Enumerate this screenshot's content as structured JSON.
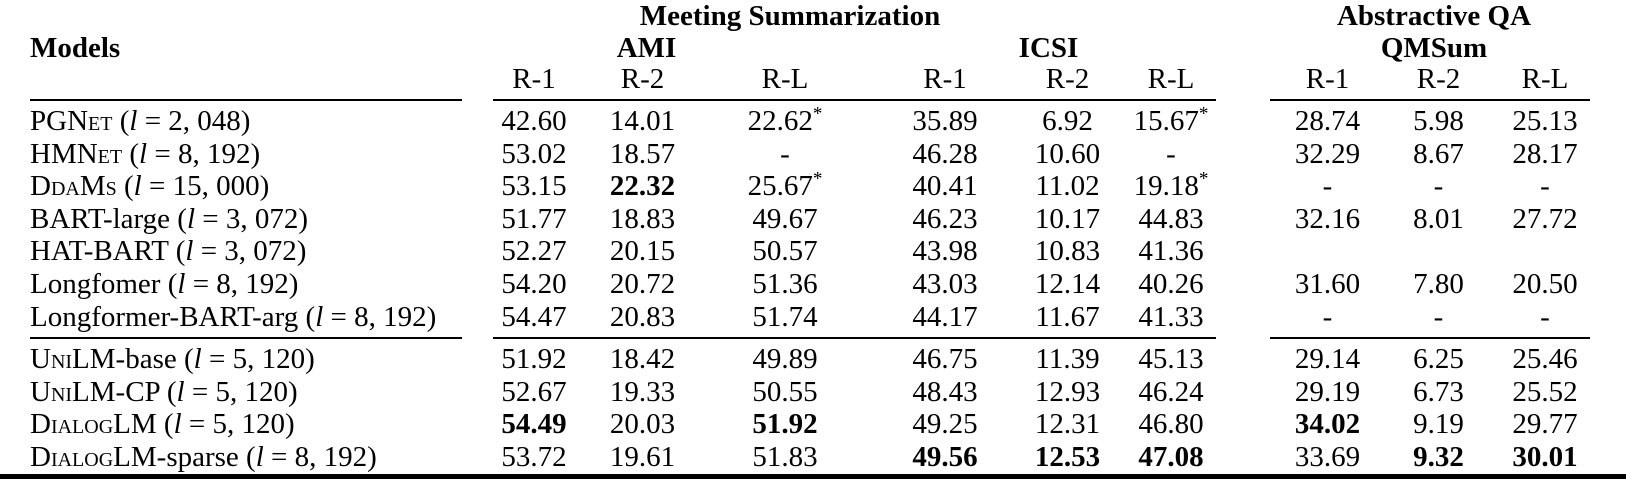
{
  "colors": {
    "text": "#000000",
    "background": "#ffffff"
  },
  "table": {
    "headers": {
      "models": "Models",
      "task_groups": [
        {
          "label": "Meeting Summarization"
        },
        {
          "label": "Abstractive QA"
        }
      ],
      "datasets": [
        {
          "label": "AMI"
        },
        {
          "label": "ICSI"
        },
        {
          "label": "QMSum"
        }
      ],
      "metrics": [
        "R-1",
        "R-2",
        "R-L"
      ]
    },
    "length_format": {
      "open": "(",
      "var": "l",
      "eq": " = ",
      "close": ")"
    },
    "groups": [
      {
        "rows": [
          {
            "name_sc": "PGNet",
            "name_rest": "",
            "length": "2, 048",
            "cells": [
              {
                "v": "42.60"
              },
              {
                "v": "14.01"
              },
              {
                "v": "22.62",
                "sup": "*"
              },
              {
                "v": "35.89"
              },
              {
                "v": "6.92"
              },
              {
                "v": "15.67",
                "sup": "*"
              },
              {
                "v": "28.74"
              },
              {
                "v": "5.98"
              },
              {
                "v": "25.13"
              }
            ]
          },
          {
            "name_sc": "HMNet",
            "name_rest": "",
            "length": "8, 192",
            "cells": [
              {
                "v": "53.02"
              },
              {
                "v": "18.57"
              },
              {
                "v": "-"
              },
              {
                "v": "46.28"
              },
              {
                "v": "10.60"
              },
              {
                "v": "-"
              },
              {
                "v": "32.29"
              },
              {
                "v": "8.67"
              },
              {
                "v": "28.17"
              }
            ]
          },
          {
            "name_sc": "DdaMs",
            "name_rest": "",
            "length": "15, 000",
            "cells": [
              {
                "v": "53.15"
              },
              {
                "v": "22.32",
                "bold": true
              },
              {
                "v": "25.67",
                "sup": "*"
              },
              {
                "v": "40.41"
              },
              {
                "v": "11.02"
              },
              {
                "v": "19.18",
                "sup": "*"
              },
              {
                "v": "-"
              },
              {
                "v": "-"
              },
              {
                "v": "-"
              }
            ]
          },
          {
            "name_sc": "",
            "name_rest": "BART-large",
            "length": "3, 072",
            "cells": [
              {
                "v": "51.77"
              },
              {
                "v": "18.83"
              },
              {
                "v": "49.67"
              },
              {
                "v": "46.23"
              },
              {
                "v": "10.17"
              },
              {
                "v": "44.83"
              },
              {
                "v": "32.16"
              },
              {
                "v": "8.01"
              },
              {
                "v": "27.72"
              }
            ]
          },
          {
            "name_sc": "",
            "name_rest": "HAT-BART",
            "length": "3, 072",
            "cells": [
              {
                "v": "52.27"
              },
              {
                "v": "20.15"
              },
              {
                "v": "50.57"
              },
              {
                "v": "43.98"
              },
              {
                "v": "10.83"
              },
              {
                "v": "41.36"
              },
              {
                "v": ""
              },
              {
                "v": ""
              },
              {
                "v": ""
              }
            ]
          },
          {
            "name_sc": "",
            "name_rest": "Longfomer",
            "length": "8, 192",
            "cells": [
              {
                "v": "54.20"
              },
              {
                "v": "20.72"
              },
              {
                "v": "51.36"
              },
              {
                "v": "43.03"
              },
              {
                "v": "12.14"
              },
              {
                "v": "40.26"
              },
              {
                "v": "31.60"
              },
              {
                "v": "7.80"
              },
              {
                "v": "20.50"
              }
            ]
          },
          {
            "name_sc": "",
            "name_rest": "Longformer-BART-arg",
            "length": "8, 192",
            "cells": [
              {
                "v": "54.47"
              },
              {
                "v": "20.83"
              },
              {
                "v": "51.74"
              },
              {
                "v": "44.17"
              },
              {
                "v": "11.67"
              },
              {
                "v": "41.33"
              },
              {
                "v": "-"
              },
              {
                "v": "-"
              },
              {
                "v": "-"
              }
            ]
          }
        ]
      },
      {
        "rows": [
          {
            "name_sc": "UniLM",
            "name_rest": "-base",
            "length": "5, 120",
            "cells": [
              {
                "v": "51.92"
              },
              {
                "v": "18.42"
              },
              {
                "v": "49.89"
              },
              {
                "v": "46.75"
              },
              {
                "v": "11.39"
              },
              {
                "v": "45.13"
              },
              {
                "v": "29.14"
              },
              {
                "v": "6.25"
              },
              {
                "v": "25.46"
              }
            ]
          },
          {
            "name_sc": "UniLM",
            "name_rest": "-CP",
            "length": "5, 120",
            "cells": [
              {
                "v": "52.67"
              },
              {
                "v": "19.33"
              },
              {
                "v": "50.55"
              },
              {
                "v": "48.43"
              },
              {
                "v": "12.93"
              },
              {
                "v": "46.24"
              },
              {
                "v": "29.19"
              },
              {
                "v": "6.73"
              },
              {
                "v": "25.52"
              }
            ]
          },
          {
            "name_sc": "DialogLM",
            "name_rest": "",
            "length": "5, 120",
            "cells": [
              {
                "v": "54.49",
                "bold": true
              },
              {
                "v": "20.03"
              },
              {
                "v": "51.92",
                "bold": true
              },
              {
                "v": "49.25"
              },
              {
                "v": "12.31"
              },
              {
                "v": "46.80"
              },
              {
                "v": "34.02",
                "bold": true
              },
              {
                "v": "9.19"
              },
              {
                "v": "29.77"
              }
            ]
          },
          {
            "name_sc": "DialogLM",
            "name_rest": "-sparse",
            "length": "8, 192",
            "cells": [
              {
                "v": "53.72"
              },
              {
                "v": "19.61"
              },
              {
                "v": "51.83"
              },
              {
                "v": "49.56",
                "bold": true
              },
              {
                "v": "12.53",
                "bold": true
              },
              {
                "v": "47.08",
                "bold": true
              },
              {
                "v": "33.69"
              },
              {
                "v": "9.32",
                "bold": true
              },
              {
                "v": "30.01",
                "bold": true
              }
            ]
          }
        ]
      }
    ]
  }
}
